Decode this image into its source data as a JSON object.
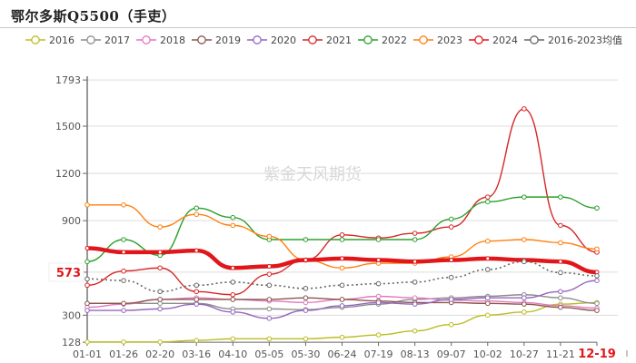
{
  "title": "鄂尔多斯Q5500（手吏）",
  "watermark": "紫金天风期货",
  "legend": [
    {
      "label": "2016",
      "color": "#bcbd22"
    },
    {
      "label": "2017",
      "color": "#8c8c8c"
    },
    {
      "label": "2018",
      "color": "#e377c2"
    },
    {
      "label": "2019",
      "color": "#8c564b"
    },
    {
      "label": "2020",
      "color": "#9467bd"
    },
    {
      "label": "2021",
      "color": "#d62728"
    },
    {
      "label": "2022",
      "color": "#2ca02c"
    },
    {
      "label": "2023",
      "color": "#ff7f0e"
    },
    {
      "label": "2024",
      "color": "#e0161b"
    },
    {
      "label": "2016-2023均值",
      "color": "#666666"
    }
  ],
  "current_value_label": "573",
  "chart_data": {
    "type": "line",
    "title": "鄂尔多斯Q5500（手吏）",
    "xlabel": "",
    "ylabel": "",
    "ylim": [
      128,
      1793
    ],
    "yticks": [
      128,
      300,
      573,
      900,
      1200,
      1500,
      1793
    ],
    "highlight_y": 573,
    "grid": true,
    "legend_position": "top",
    "x": [
      "01-01",
      "01-26",
      "02-20",
      "03-16",
      "04-10",
      "05-05",
      "05-30",
      "06-24",
      "07-19",
      "08-13",
      "09-07",
      "10-02",
      "10-27",
      "11-21",
      "12-19"
    ],
    "series": [
      {
        "name": "2016",
        "color": "#bcbd22",
        "values": [
          130,
          130,
          130,
          140,
          150,
          150,
          150,
          160,
          175,
          200,
          240,
          300,
          320,
          370,
          380
        ]
      },
      {
        "name": "2017",
        "color": "#8c8c8c",
        "values": [
          375,
          375,
          375,
          375,
          340,
          340,
          335,
          350,
          370,
          400,
          410,
          420,
          430,
          410,
          375
        ]
      },
      {
        "name": "2018",
        "color": "#e377c2",
        "values": [
          350,
          370,
          400,
          410,
          400,
          390,
          380,
          400,
          420,
          410,
          395,
          390,
          380,
          360,
          345
        ]
      },
      {
        "name": "2019",
        "color": "#8c564b",
        "values": [
          375,
          375,
          400,
          400,
          400,
          400,
          410,
          400,
          390,
          380,
          380,
          375,
          370,
          350,
          330
        ]
      },
      {
        "name": "2020",
        "color": "#9467bd",
        "values": [
          330,
          330,
          340,
          370,
          320,
          280,
          330,
          360,
          380,
          370,
          400,
          410,
          410,
          450,
          520
        ]
      },
      {
        "name": "2021",
        "color": "#d62728",
        "values": [
          490,
          580,
          600,
          450,
          430,
          560,
          650,
          810,
          790,
          820,
          860,
          1050,
          1610,
          870,
          700
        ]
      },
      {
        "name": "2022",
        "color": "#2ca02c",
        "values": [
          640,
          780,
          680,
          980,
          920,
          780,
          780,
          780,
          780,
          780,
          910,
          1020,
          1050,
          1050,
          980
        ]
      },
      {
        "name": "2023",
        "color": "#ff7f0e",
        "values": [
          1000,
          1000,
          860,
          940,
          870,
          800,
          650,
          600,
          630,
          630,
          670,
          770,
          780,
          760,
          720
        ]
      },
      {
        "name": "2024",
        "color": "#e0161b",
        "values": [
          725,
          700,
          700,
          710,
          600,
          610,
          650,
          660,
          650,
          640,
          650,
          660,
          650,
          640,
          573
        ]
      },
      {
        "name": "2016-2023均值",
        "color": "#666666",
        "values": [
          530,
          520,
          450,
          490,
          510,
          490,
          470,
          490,
          500,
          510,
          540,
          590,
          640,
          570,
          550
        ]
      }
    ]
  }
}
